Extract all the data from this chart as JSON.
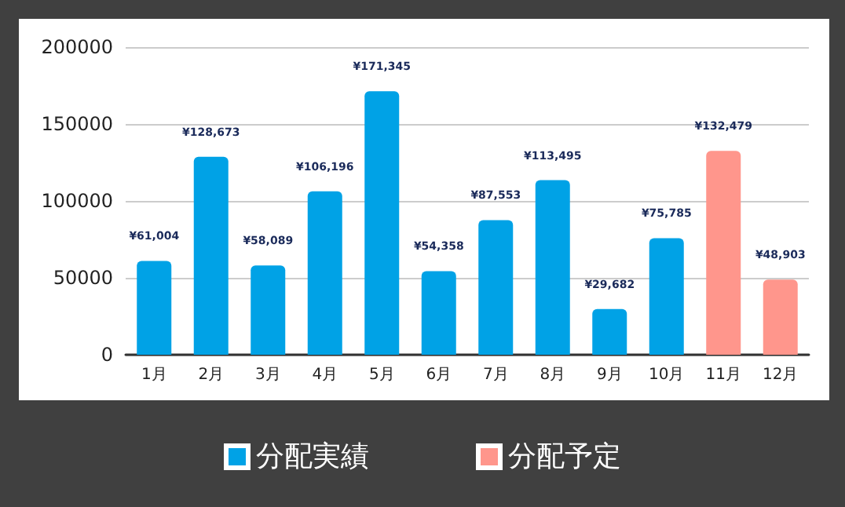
{
  "chart_data": {
    "type": "bar",
    "categories": [
      "1月",
      "2月",
      "3月",
      "4月",
      "5月",
      "6月",
      "7月",
      "8月",
      "9月",
      "10月",
      "11月",
      "12月"
    ],
    "series": [
      {
        "name": "分配実績",
        "color": "#00a2e6",
        "values": [
          61004,
          128673,
          58089,
          106196,
          171345,
          54358,
          87553,
          113495,
          29682,
          75785,
          null,
          null
        ],
        "value_labels": [
          "¥61,004",
          "¥128,673",
          "¥58,089",
          "¥106,196",
          "¥171,345",
          "¥54,358",
          "¥87,553",
          "¥113,495",
          "¥29,682",
          "¥75,785",
          null,
          null
        ]
      },
      {
        "name": "分配予定",
        "color": "#ff968c",
        "values": [
          null,
          null,
          null,
          null,
          null,
          null,
          null,
          null,
          null,
          null,
          132479,
          48903
        ],
        "value_labels": [
          null,
          null,
          null,
          null,
          null,
          null,
          null,
          null,
          null,
          null,
          "¥132,479",
          "¥48,903"
        ]
      }
    ],
    "ylim": [
      0,
      200000
    ],
    "yticks": [
      0,
      50000,
      100000,
      150000,
      200000
    ],
    "grid": "y",
    "legend": "bottom"
  }
}
